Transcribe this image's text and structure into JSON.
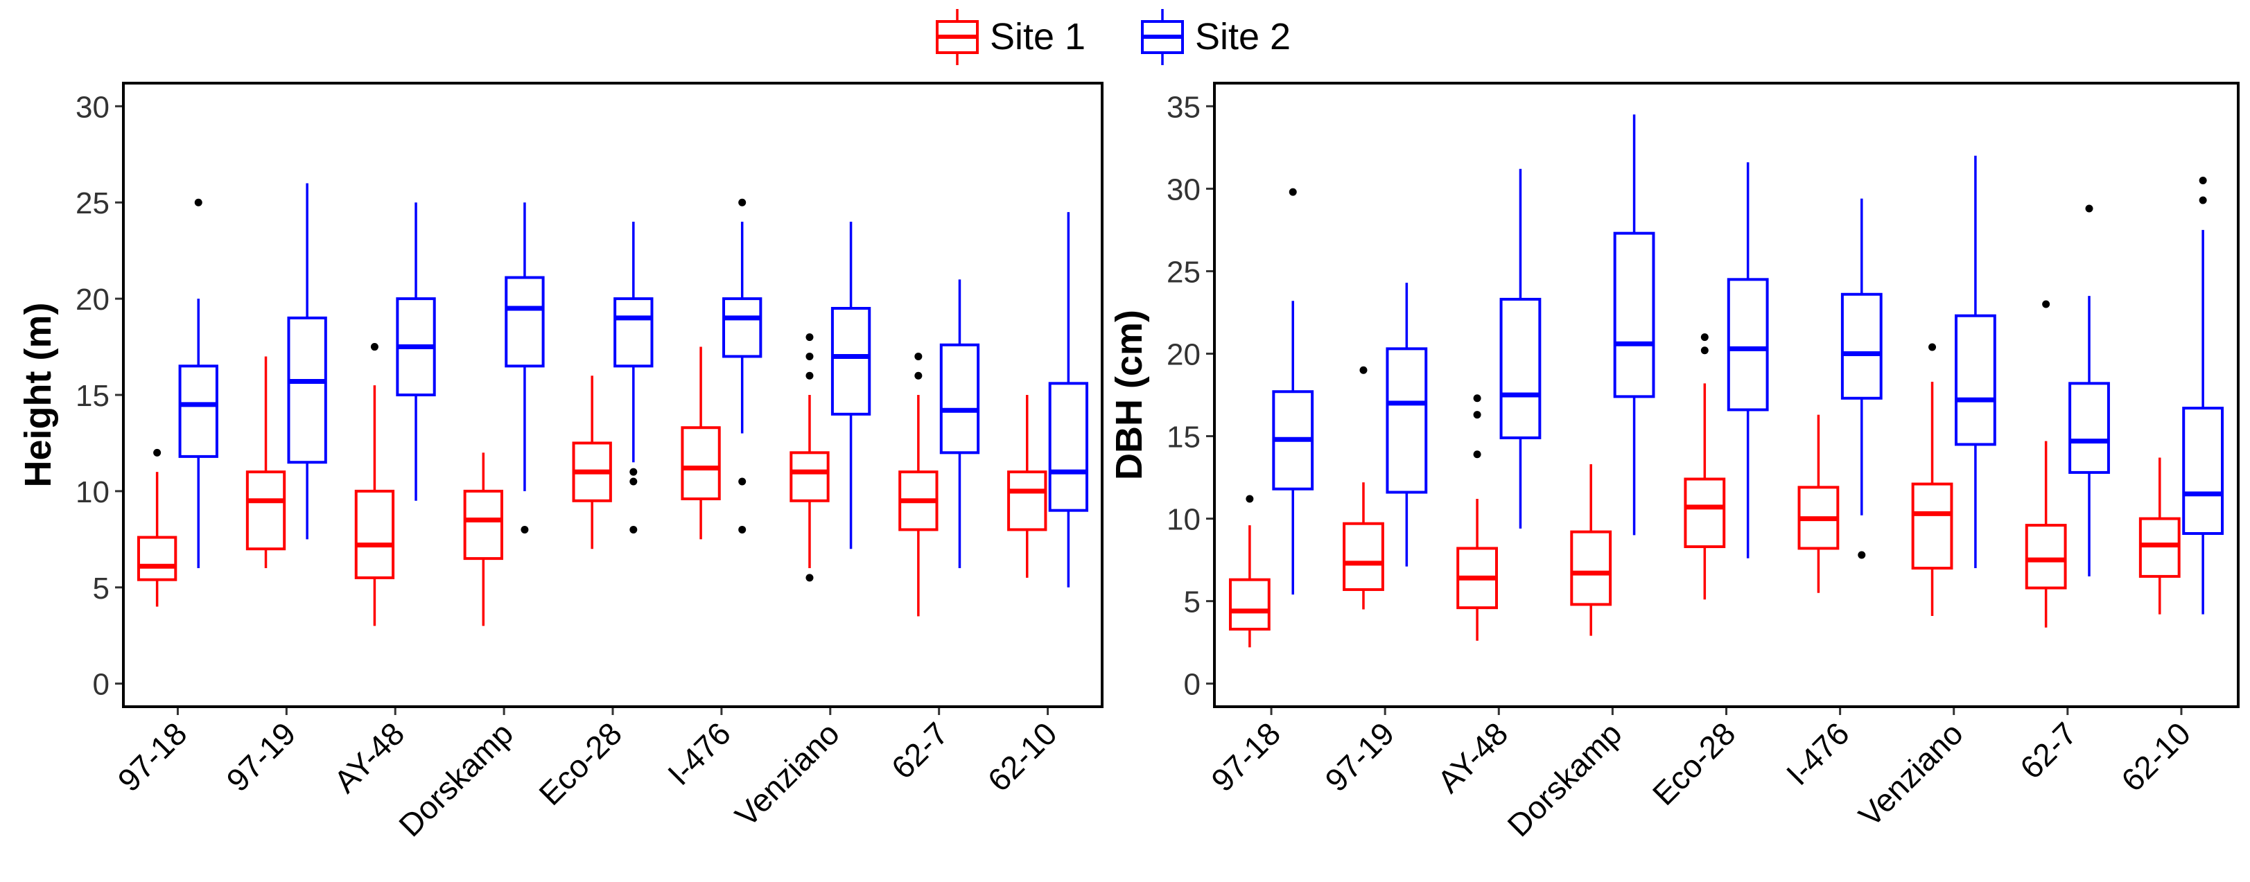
{
  "legend": {
    "items": [
      {
        "label": "Site 1",
        "color": "#ff0000"
      },
      {
        "label": "Site 2",
        "color": "#0000ff"
      }
    ],
    "placement": "top-center"
  },
  "chart_data": [
    {
      "type": "boxplot",
      "ylabel": "Height (m)",
      "xlabel": "",
      "ylim": [
        -1.2,
        31.2
      ],
      "yticks": [
        0,
        5,
        10,
        15,
        20,
        25,
        30
      ],
      "grid": false,
      "categories": [
        "97-18",
        "97-19",
        "AY-48",
        "Dorskamp",
        "Eco-28",
        "I-476",
        "Venziano",
        "62-7",
        "62-10"
      ],
      "series": [
        {
          "name": "Site 1",
          "color": "#ff0000",
          "boxes": [
            {
              "min": 4,
              "q1": 5.4,
              "median": 6.1,
              "q3": 7.6,
              "max": 11,
              "outliers": [
                12
              ]
            },
            {
              "min": 6,
              "q1": 7,
              "median": 9.5,
              "q3": 11,
              "max": 17,
              "outliers": []
            },
            {
              "min": 3,
              "q1": 5.5,
              "median": 7.2,
              "q3": 10,
              "max": 15.5,
              "outliers": [
                17.5
              ]
            },
            {
              "min": 3,
              "q1": 6.5,
              "median": 8.5,
              "q3": 10,
              "max": 12,
              "outliers": []
            },
            {
              "min": 7,
              "q1": 9.5,
              "median": 11,
              "q3": 12.5,
              "max": 16,
              "outliers": []
            },
            {
              "min": 7.5,
              "q1": 9.6,
              "median": 11.2,
              "q3": 13.3,
              "max": 17.5,
              "outliers": []
            },
            {
              "min": 6,
              "q1": 9.5,
              "median": 11,
              "q3": 12,
              "max": 15,
              "outliers": [
                5.5,
                16,
                17,
                18
              ]
            },
            {
              "min": 3.5,
              "q1": 8,
              "median": 9.5,
              "q3": 11,
              "max": 15,
              "outliers": [
                16,
                17
              ]
            },
            {
              "min": 5.5,
              "q1": 8,
              "median": 10,
              "q3": 11,
              "max": 15,
              "outliers": []
            }
          ]
        },
        {
          "name": "Site 2",
          "color": "#0000ff",
          "boxes": [
            {
              "min": 6,
              "q1": 11.8,
              "median": 14.5,
              "q3": 16.5,
              "max": 20,
              "outliers": [
                25
              ]
            },
            {
              "min": 7.5,
              "q1": 11.5,
              "median": 15.7,
              "q3": 19,
              "max": 26,
              "outliers": []
            },
            {
              "min": 9.5,
              "q1": 15,
              "median": 17.5,
              "q3": 20,
              "max": 25,
              "outliers": []
            },
            {
              "min": 10,
              "q1": 16.5,
              "median": 19.5,
              "q3": 21.1,
              "max": 25,
              "outliers": [
                8
              ]
            },
            {
              "min": 11.5,
              "q1": 16.5,
              "median": 19,
              "q3": 20,
              "max": 24,
              "outliers": [
                8,
                10.5,
                11
              ]
            },
            {
              "min": 13,
              "q1": 17,
              "median": 19,
              "q3": 20,
              "max": 24,
              "outliers": [
                8,
                10.5,
                25
              ]
            },
            {
              "min": 7,
              "q1": 14,
              "median": 17,
              "q3": 19.5,
              "max": 24,
              "outliers": []
            },
            {
              "min": 6,
              "q1": 12,
              "median": 14.2,
              "q3": 17.6,
              "max": 21,
              "outliers": []
            },
            {
              "min": 5,
              "q1": 9,
              "median": 11,
              "q3": 15.6,
              "max": 24.5,
              "outliers": []
            }
          ]
        }
      ]
    },
    {
      "type": "boxplot",
      "ylabel": "DBH (cm)",
      "xlabel": "",
      "ylim": [
        -1.4,
        36.4
      ],
      "yticks": [
        0,
        5,
        10,
        15,
        20,
        25,
        30,
        35
      ],
      "grid": false,
      "categories": [
        "97-18",
        "97-19",
        "AY-48",
        "Dorskamp",
        "Eco-28",
        "I-476",
        "Venziano",
        "62-7",
        "62-10"
      ],
      "series": [
        {
          "name": "Site 1",
          "color": "#ff0000",
          "boxes": [
            {
              "min": 2.2,
              "q1": 3.3,
              "median": 4.4,
              "q3": 6.3,
              "max": 9.6,
              "outliers": [
                11.2
              ]
            },
            {
              "min": 4.5,
              "q1": 5.7,
              "median": 7.3,
              "q3": 9.7,
              "max": 12.2,
              "outliers": [
                19
              ]
            },
            {
              "min": 2.6,
              "q1": 4.6,
              "median": 6.4,
              "q3": 8.2,
              "max": 11.2,
              "outliers": [
                13.9,
                16.3,
                17.3
              ]
            },
            {
              "min": 2.9,
              "q1": 4.8,
              "median": 6.7,
              "q3": 9.2,
              "max": 13.3,
              "outliers": []
            },
            {
              "min": 5.1,
              "q1": 8.3,
              "median": 10.7,
              "q3": 12.4,
              "max": 18.2,
              "outliers": [
                20.2,
                21
              ]
            },
            {
              "min": 5.5,
              "q1": 8.2,
              "median": 10,
              "q3": 11.9,
              "max": 16.3,
              "outliers": []
            },
            {
              "min": 4.1,
              "q1": 7,
              "median": 10.3,
              "q3": 12.1,
              "max": 18.3,
              "outliers": [
                20.4
              ]
            },
            {
              "min": 3.4,
              "q1": 5.8,
              "median": 7.5,
              "q3": 9.6,
              "max": 14.7,
              "outliers": [
                23
              ]
            },
            {
              "min": 4.2,
              "q1": 6.5,
              "median": 8.4,
              "q3": 10,
              "max": 13.7,
              "outliers": []
            }
          ]
        },
        {
          "name": "Site 2",
          "color": "#0000ff",
          "boxes": [
            {
              "min": 5.4,
              "q1": 11.8,
              "median": 14.8,
              "q3": 17.7,
              "max": 23.2,
              "outliers": [
                29.8
              ]
            },
            {
              "min": 7.1,
              "q1": 11.6,
              "median": 17,
              "q3": 20.3,
              "max": 24.3,
              "outliers": []
            },
            {
              "min": 9.4,
              "q1": 14.9,
              "median": 17.5,
              "q3": 23.3,
              "max": 31.2,
              "outliers": []
            },
            {
              "min": 9,
              "q1": 17.4,
              "median": 20.6,
              "q3": 27.3,
              "max": 34.5,
              "outliers": []
            },
            {
              "min": 7.6,
              "q1": 16.6,
              "median": 20.3,
              "q3": 24.5,
              "max": 31.6,
              "outliers": []
            },
            {
              "min": 10.2,
              "q1": 17.3,
              "median": 20,
              "q3": 23.6,
              "max": 29.4,
              "outliers": [
                7.8
              ]
            },
            {
              "min": 7,
              "q1": 14.5,
              "median": 17.2,
              "q3": 22.3,
              "max": 32,
              "outliers": []
            },
            {
              "min": 6.5,
              "q1": 12.8,
              "median": 14.7,
              "q3": 18.2,
              "max": 23.5,
              "outliers": [
                28.8
              ]
            },
            {
              "min": 4.2,
              "q1": 9.1,
              "median": 11.5,
              "q3": 16.7,
              "max": 27.5,
              "outliers": [
                29.3,
                30.5
              ]
            }
          ]
        }
      ]
    }
  ]
}
